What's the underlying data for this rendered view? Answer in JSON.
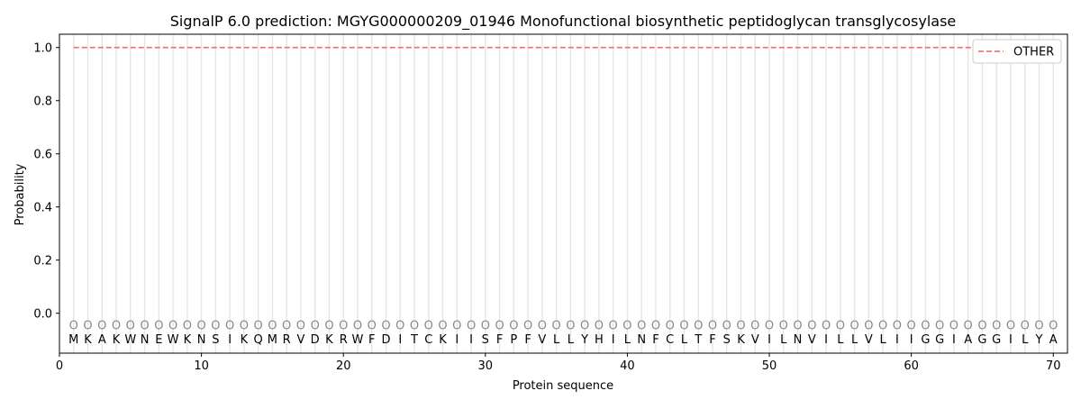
{
  "chart_data": {
    "type": "line",
    "title": "SignalP 6.0 prediction: MGYG000000209_01946 Monofunctional biosynthetic peptidoglycan transglycosylase",
    "xlabel": "Protein sequence",
    "ylabel": "Probability",
    "xlim": [
      0,
      71
    ],
    "ylim": [
      -0.15,
      1.05
    ],
    "xticks": [
      0,
      10,
      20,
      30,
      40,
      50,
      60,
      70
    ],
    "yticks": [
      0.0,
      0.2,
      0.4,
      0.6,
      0.8,
      1.0
    ],
    "ytick_labels": [
      "0.0",
      "0.2",
      "0.4",
      "0.6",
      "0.8",
      "1.0"
    ],
    "legend_position": "top-right",
    "sequence": [
      "M",
      "K",
      "A",
      "K",
      "W",
      "N",
      "E",
      "W",
      "K",
      "N",
      "S",
      "I",
      "K",
      "Q",
      "M",
      "R",
      "V",
      "D",
      "K",
      "R",
      "W",
      "F",
      "D",
      "I",
      "T",
      "C",
      "K",
      "I",
      "I",
      "S",
      "F",
      "P",
      "F",
      "V",
      "L",
      "L",
      "Y",
      "H",
      "I",
      "L",
      "N",
      "F",
      "C",
      "L",
      "T",
      "F",
      "S",
      "K",
      "V",
      "I",
      "L",
      "N",
      "V",
      "I",
      "L",
      "L",
      "V",
      "L",
      "I",
      "I",
      "G",
      "G",
      "I",
      "A",
      "G",
      "G",
      "I",
      "L",
      "Y",
      "A"
    ],
    "state_marker": "O",
    "state_marker_y": -0.045,
    "series": [
      {
        "name": "OTHER",
        "color": "#e8797a",
        "style": "dashed",
        "x_start": 1,
        "x_end": 70,
        "value": 1.0
      }
    ],
    "grid_vertical": true
  }
}
